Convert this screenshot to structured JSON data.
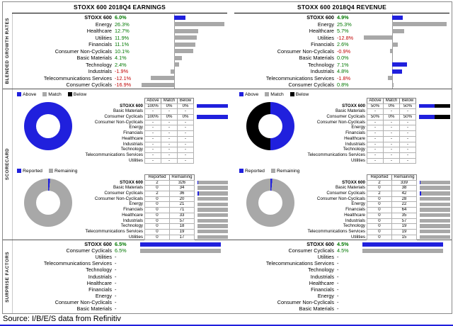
{
  "meta": {
    "source_line": "Source: I/B/E/S data from Refinitiv"
  },
  "colors": {
    "blue": "#2020dd",
    "gray": "#a8a8a8",
    "black": "#000000",
    "green": "#007700",
    "red": "#c00000"
  },
  "section_labels": [
    "BLENDED GROWTH RATES",
    "SCORECARD",
    "SURPRISE FACTORS"
  ],
  "legends": {
    "amb": [
      {
        "label": "Above",
        "color": "blue"
      },
      {
        "label": "Match",
        "color": "gray"
      },
      {
        "label": "Below",
        "color": "black"
      }
    ],
    "rr": [
      {
        "label": "Reported",
        "color": "blue"
      },
      {
        "label": "Remaining",
        "color": "gray"
      }
    ]
  },
  "chart_data": [
    {
      "id": "earnings",
      "title": "STOXX 600 2018Q4 EARNINGS",
      "growth": {
        "type": "bar",
        "unit": "%",
        "rows": [
          {
            "label": "STOXX 600",
            "value": 6.0,
            "display": "6.0%",
            "bold": true,
            "bar_color": "blue"
          },
          {
            "label": "Energy",
            "value": 26.3,
            "display": "26.3%",
            "bar_color": "gray"
          },
          {
            "label": "Healthcare",
            "value": 12.7,
            "display": "12.7%",
            "bar_color": "gray"
          },
          {
            "label": "Utilities",
            "value": 11.9,
            "display": "11.9%",
            "bar_color": "gray"
          },
          {
            "label": "Financials",
            "value": 11.1,
            "display": "11.1%",
            "bar_color": "gray"
          },
          {
            "label": "Consumer Non-Cyclicals",
            "value": 10.1,
            "display": "10.1%",
            "bar_color": "gray"
          },
          {
            "label": "Basic Materials",
            "value": 4.1,
            "display": "4.1%",
            "bar_color": "gray"
          },
          {
            "label": "Technology",
            "value": 2.4,
            "display": "2.4%",
            "bar_color": "gray"
          },
          {
            "label": "Industrials",
            "value": -1.9,
            "display": "-1.9%",
            "bar_color": "gray"
          },
          {
            "label": "Telecommunications Services",
            "value": -12.1,
            "display": "-12.1%",
            "bar_color": "gray"
          },
          {
            "label": "Consumer Cyclicals",
            "value": -16.9,
            "display": "-16.9%",
            "bar_color": "gray"
          }
        ]
      },
      "above_match_below": {
        "type": "table",
        "columns": [
          "Above",
          "Match",
          "Below"
        ],
        "donut": [
          {
            "color": "blue",
            "pct": 100
          }
        ],
        "rows": [
          {
            "label": "STOXX 600",
            "bold": true,
            "values": [
              "100%",
              "0%",
              "0%"
            ],
            "bar": [
              100,
              0,
              0
            ]
          },
          {
            "label": "Basic Materials",
            "values": [
              "-",
              "-",
              "-"
            ]
          },
          {
            "label": "Consumer Cyclicals",
            "values": [
              "100%",
              "0%",
              "0%"
            ],
            "bar": [
              100,
              0,
              0
            ]
          },
          {
            "label": "Consumer Non-Cyclicals",
            "values": [
              "-",
              "-",
              "-"
            ]
          },
          {
            "label": "Energy",
            "values": [
              "-",
              "-",
              "-"
            ]
          },
          {
            "label": "Financials",
            "values": [
              "-",
              "-",
              "-"
            ]
          },
          {
            "label": "Healthcare",
            "values": [
              "-",
              "-",
              "-"
            ]
          },
          {
            "label": "Industrials",
            "values": [
              "-",
              "-",
              "-"
            ]
          },
          {
            "label": "Technology",
            "values": [
              "-",
              "-",
              "-"
            ]
          },
          {
            "label": "Telecommunications Services",
            "values": [
              "-",
              "-",
              "-"
            ]
          },
          {
            "label": "Utilities",
            "values": [
              "-",
              "-",
              "-"
            ]
          }
        ]
      },
      "reported_remaining": {
        "type": "table",
        "columns": [
          "Reported",
          "Remaining"
        ],
        "rows": [
          {
            "label": "STOXX 600",
            "bold": true,
            "reported": 2,
            "remaining": 326
          },
          {
            "label": "Basic Materials",
            "reported": 0,
            "remaining": 34
          },
          {
            "label": "Consumer Cyclicals",
            "reported": 2,
            "remaining": 36
          },
          {
            "label": "Consumer Non-Cyclicals",
            "reported": 0,
            "remaining": 20
          },
          {
            "label": "Energy",
            "reported": 0,
            "remaining": 21
          },
          {
            "label": "Financials",
            "reported": 0,
            "remaining": 71
          },
          {
            "label": "Healthcare",
            "reported": 0,
            "remaining": 33
          },
          {
            "label": "Industrials",
            "reported": 0,
            "remaining": 57
          },
          {
            "label": "Technology",
            "reported": 0,
            "remaining": 18
          },
          {
            "label": "Telecommunications Services",
            "reported": 0,
            "remaining": 19
          },
          {
            "label": "Utilities",
            "reported": 0,
            "remaining": 17
          }
        ]
      },
      "surprise": {
        "type": "bar",
        "unit": "%",
        "rows": [
          {
            "label": "STOXX 600",
            "value": 6.5,
            "display": "6.5%",
            "bold": true,
            "bar_color": "blue"
          },
          {
            "label": "Consumer Cyclicals",
            "value": 6.5,
            "display": "6.5%",
            "bar_color": "gray"
          },
          {
            "label": "Utilities",
            "display": "-"
          },
          {
            "label": "Telecommunications Services",
            "display": "-"
          },
          {
            "label": "Technology",
            "display": "-"
          },
          {
            "label": "Industrials",
            "display": "-"
          },
          {
            "label": "Healthcare",
            "display": "-"
          },
          {
            "label": "Financials",
            "display": "-"
          },
          {
            "label": "Energy",
            "display": "-"
          },
          {
            "label": "Consumer Non-Cyclicals",
            "display": "-"
          },
          {
            "label": "Basic Materials",
            "display": "-"
          }
        ]
      }
    },
    {
      "id": "revenue",
      "title": "STOXX 600 2018Q4 REVENUE",
      "growth": {
        "type": "bar",
        "unit": "%",
        "rows": [
          {
            "label": "STOXX 600",
            "value": 4.9,
            "display": "4.9%",
            "bold": true,
            "bar_color": "blue"
          },
          {
            "label": "Energy",
            "value": 25.3,
            "display": "25.3%",
            "bar_color": "gray"
          },
          {
            "label": "Healthcare",
            "value": 5.7,
            "display": "5.7%",
            "bar_color": "gray"
          },
          {
            "label": "Utilities",
            "value": -12.8,
            "display": "-12.8%",
            "bar_color": "gray"
          },
          {
            "label": "Financials",
            "value": 2.6,
            "display": "2.6%",
            "bar_color": "gray"
          },
          {
            "label": "Consumer Non-Cyclicals",
            "value": -0.9,
            "display": "-0.9%",
            "bar_color": "gray"
          },
          {
            "label": "Basic Materials",
            "value": 0.0,
            "display": "0.0%",
            "bar_color": "gray"
          },
          {
            "label": "Technology",
            "value": 7.1,
            "display": "7.1%",
            "bar_color": "blue"
          },
          {
            "label": "Industrials",
            "value": 4.8,
            "display": "4.8%",
            "bar_color": "blue"
          },
          {
            "label": "Telecommunications Services",
            "value": -1.8,
            "display": "-1.8%",
            "bar_color": "gray"
          },
          {
            "label": "Consumer Cyclicals",
            "value": 0.8,
            "display": "0.8%",
            "bar_color": "gray"
          }
        ]
      },
      "above_match_below": {
        "type": "table",
        "columns": [
          "Above",
          "Match",
          "Below"
        ],
        "donut": [
          {
            "color": "blue",
            "pct": 50
          },
          {
            "color": "black",
            "pct": 50
          }
        ],
        "rows": [
          {
            "label": "STOXX 600",
            "bold": true,
            "values": [
              "50%",
              "0%",
              "50%"
            ],
            "bar": [
              50,
              0,
              50
            ]
          },
          {
            "label": "Basic Materials",
            "values": [
              "-",
              "-",
              "-"
            ]
          },
          {
            "label": "Consumer Cyclicals",
            "values": [
              "50%",
              "0%",
              "50%"
            ],
            "bar": [
              50,
              0,
              50
            ]
          },
          {
            "label": "Consumer Non-Cyclicals",
            "values": [
              "-",
              "-",
              "-"
            ]
          },
          {
            "label": "Energy",
            "values": [
              "-",
              "-",
              "-"
            ]
          },
          {
            "label": "Financials",
            "values": [
              "-",
              "-",
              "-"
            ]
          },
          {
            "label": "Healthcare",
            "values": [
              "-",
              "-",
              "-"
            ]
          },
          {
            "label": "Industrials",
            "values": [
              "-",
              "-",
              "-"
            ]
          },
          {
            "label": "Technology",
            "values": [
              "-",
              "-",
              "-"
            ]
          },
          {
            "label": "Telecommunications Services",
            "values": [
              "-",
              "-",
              "-"
            ]
          },
          {
            "label": "Utilities",
            "values": [
              "-",
              "-",
              "-"
            ]
          }
        ]
      },
      "reported_remaining": {
        "type": "table",
        "columns": [
          "Reported",
          "Remaining"
        ],
        "rows": [
          {
            "label": "STOXX 600",
            "bold": true,
            "reported": 2,
            "remaining": 339
          },
          {
            "label": "Basic Materials",
            "reported": 0,
            "remaining": 38
          },
          {
            "label": "Consumer Cyclicals",
            "reported": 2,
            "remaining": 42
          },
          {
            "label": "Consumer Non-Cyclicals",
            "reported": 0,
            "remaining": 28
          },
          {
            "label": "Energy",
            "reported": 0,
            "remaining": 22
          },
          {
            "label": "Financials",
            "reported": 0,
            "remaining": 64
          },
          {
            "label": "Healthcare",
            "reported": 0,
            "remaining": 35
          },
          {
            "label": "Industrials",
            "reported": 0,
            "remaining": 57
          },
          {
            "label": "Technology",
            "reported": 0,
            "remaining": 19
          },
          {
            "label": "Telecommunications Services",
            "reported": 0,
            "remaining": 19
          },
          {
            "label": "Utilities",
            "reported": 0,
            "remaining": 15
          }
        ]
      },
      "surprise": {
        "type": "bar",
        "unit": "%",
        "rows": [
          {
            "label": "STOXX 600",
            "value": 4.5,
            "display": "4.5%",
            "bold": true,
            "bar_color": "blue"
          },
          {
            "label": "Consumer Cyclicals",
            "value": 4.5,
            "display": "4.5%",
            "bar_color": "gray"
          },
          {
            "label": "Utilities",
            "display": "-"
          },
          {
            "label": "Telecommunications Services",
            "display": "-"
          },
          {
            "label": "Technology",
            "display": "-"
          },
          {
            "label": "Industrials",
            "display": "-"
          },
          {
            "label": "Healthcare",
            "display": "-"
          },
          {
            "label": "Financials",
            "display": "-"
          },
          {
            "label": "Energy",
            "display": "-"
          },
          {
            "label": "Consumer Non-Cyclicals",
            "display": "-"
          },
          {
            "label": "Basic Materials",
            "display": "-"
          }
        ]
      }
    }
  ]
}
